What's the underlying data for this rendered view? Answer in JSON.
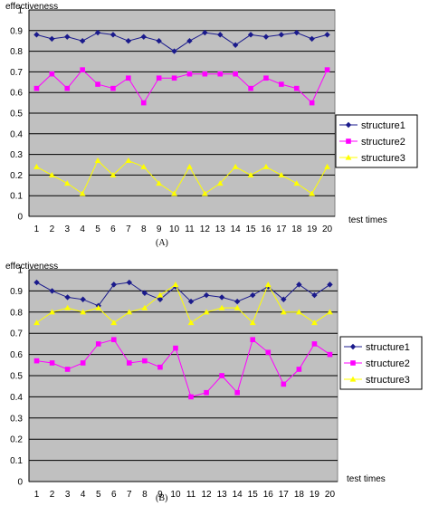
{
  "chart_data": [
    {
      "type": "line",
      "caption": "(A)",
      "ylabel": "effectiveness",
      "xlabel": "test times",
      "ylim": [
        0,
        1
      ],
      "yticks": [
        "0",
        "0.1",
        "0.2",
        "0.3",
        "0.4",
        "0.5",
        "0.6",
        "0.7",
        "0.8",
        "0.9",
        "1"
      ],
      "categories": [
        "1",
        "2",
        "3",
        "4",
        "5",
        "6",
        "7",
        "8",
        "9",
        "10",
        "11",
        "12",
        "13",
        "14",
        "15",
        "16",
        "17",
        "18",
        "19",
        "20"
      ],
      "grid": true,
      "legend": "right",
      "series": [
        {
          "name": "structure1",
          "color": "#1a1a8c",
          "marker": "diamond",
          "values": [
            0.88,
            0.86,
            0.87,
            0.85,
            0.89,
            0.88,
            0.85,
            0.87,
            0.85,
            0.8,
            0.85,
            0.89,
            0.88,
            0.83,
            0.88,
            0.87,
            0.88,
            0.89,
            0.86,
            0.88
          ]
        },
        {
          "name": "structure2",
          "color": "#ff00ff",
          "marker": "square",
          "values": [
            0.62,
            0.69,
            0.62,
            0.71,
            0.64,
            0.62,
            0.67,
            0.55,
            0.67,
            0.67,
            0.69,
            0.69,
            0.69,
            0.69,
            0.62,
            0.67,
            0.64,
            0.62,
            0.55,
            0.71
          ]
        },
        {
          "name": "structure3",
          "color": "#ffff00",
          "marker": "triangle",
          "values": [
            0.24,
            0.2,
            0.16,
            0.11,
            0.27,
            0.2,
            0.27,
            0.24,
            0.16,
            0.11,
            0.24,
            0.11,
            0.16,
            0.24,
            0.2,
            0.24,
            0.2,
            0.16,
            0.11,
            0.24
          ]
        }
      ]
    },
    {
      "type": "line",
      "caption": "(B)",
      "ylabel": "effectiveness",
      "xlabel": "test times",
      "ylim": [
        0,
        1
      ],
      "yticks": [
        "0",
        "0.1",
        "0.2",
        "0.3",
        "0.4",
        "0.5",
        "0.6",
        "0.7",
        "0.8",
        "0.9",
        "1"
      ],
      "categories": [
        "1",
        "2",
        "3",
        "4",
        "5",
        "6",
        "7",
        "8",
        "9",
        "10",
        "11",
        "12",
        "13",
        "14",
        "15",
        "16",
        "17",
        "18",
        "19",
        "20"
      ],
      "grid": true,
      "legend": "right",
      "series": [
        {
          "name": "structure1",
          "color": "#1a1a8c",
          "marker": "diamond",
          "values": [
            0.94,
            0.9,
            0.87,
            0.86,
            0.83,
            0.93,
            0.94,
            0.89,
            0.86,
            0.92,
            0.85,
            0.88,
            0.87,
            0.85,
            0.88,
            0.92,
            0.86,
            0.93,
            0.88,
            0.93
          ]
        },
        {
          "name": "structure2",
          "color": "#ff00ff",
          "marker": "square",
          "values": [
            0.57,
            0.56,
            0.53,
            0.56,
            0.65,
            0.67,
            0.56,
            0.57,
            0.54,
            0.63,
            0.4,
            0.42,
            0.5,
            0.42,
            0.67,
            0.61,
            0.46,
            0.53,
            0.65,
            0.6
          ]
        },
        {
          "name": "structure3",
          "color": "#ffff00",
          "marker": "triangle",
          "values": [
            0.75,
            0.8,
            0.82,
            0.8,
            0.82,
            0.75,
            0.8,
            0.82,
            0.88,
            0.93,
            0.75,
            0.8,
            0.82,
            0.82,
            0.75,
            0.93,
            0.8,
            0.8,
            0.75,
            0.8
          ]
        }
      ]
    }
  ]
}
